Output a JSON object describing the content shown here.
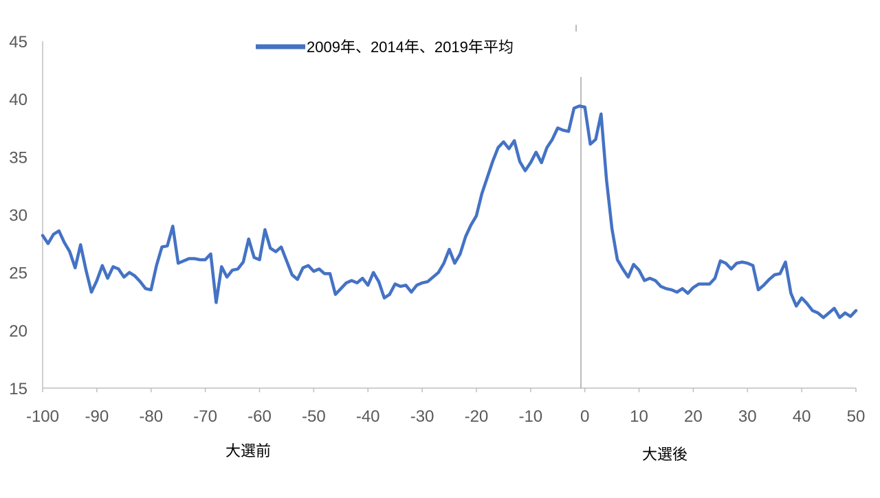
{
  "chart_data": {
    "type": "line",
    "title": "",
    "xlabel": "",
    "ylabel": "",
    "xlim": [
      -100,
      50
    ],
    "ylim": [
      15,
      45
    ],
    "x_ticks": [
      "-100",
      "-90",
      "-80",
      "-70",
      "-60",
      "-50",
      "-40",
      "-30",
      "-20",
      "-10",
      "0",
      "10",
      "20",
      "30",
      "40",
      "50"
    ],
    "y_ticks": [
      "15",
      "20",
      "25",
      "30",
      "35",
      "40",
      "45"
    ],
    "legend": "top-center",
    "grid": false,
    "annotations": {
      "before": "大選前",
      "after": "大選後"
    },
    "series": [
      {
        "name": "2009年、2014年、2019年平均",
        "color": "#4472C4",
        "x": [
          -100,
          -99,
          -98,
          -97,
          -96,
          -95,
          -94,
          -93,
          -92,
          -91,
          -90,
          -89,
          -88,
          -87,
          -86,
          -85,
          -84,
          -83,
          -82,
          -81,
          -80,
          -79,
          -78,
          -77,
          -76,
          -75,
          -74,
          -73,
          -72,
          -71,
          -70,
          -69,
          -68,
          -67,
          -66,
          -65,
          -64,
          -63,
          -62,
          -61,
          -60,
          -59,
          -58,
          -57,
          -56,
          -55,
          -54,
          -53,
          -52,
          -51,
          -50,
          -49,
          -48,
          -47,
          -46,
          -45,
          -44,
          -43,
          -42,
          -41,
          -40,
          -39,
          -38,
          -37,
          -36,
          -35,
          -34,
          -33,
          -32,
          -31,
          -30,
          -29,
          -28,
          -27,
          -26,
          -25,
          -24,
          -23,
          -22,
          -21,
          -20,
          -19,
          -18,
          -17,
          -16,
          -15,
          -14,
          -13,
          -12,
          -11,
          -10,
          -9,
          -8,
          -7,
          -6,
          -5,
          -4,
          -3,
          -2,
          -1,
          0,
          1,
          2,
          3,
          4,
          5,
          6,
          7,
          8,
          9,
          10,
          11,
          12,
          13,
          14,
          15,
          16,
          17,
          18,
          19,
          20,
          21,
          22,
          23,
          24,
          25,
          26,
          27,
          28,
          29,
          30,
          31,
          32,
          33,
          34,
          35,
          36,
          37,
          38,
          39,
          40,
          41,
          42,
          43,
          44,
          45,
          46,
          47,
          48,
          49,
          50
        ],
        "values": [
          28.2,
          27.5,
          28.3,
          28.6,
          27.6,
          26.8,
          25.4,
          27.4,
          25.2,
          23.3,
          24.3,
          25.6,
          24.5,
          25.5,
          25.3,
          24.6,
          25.0,
          24.7,
          24.2,
          23.6,
          23.5,
          25.6,
          27.2,
          27.3,
          29.0,
          25.8,
          26.0,
          26.2,
          26.2,
          26.1,
          26.1,
          26.6,
          22.4,
          25.5,
          24.6,
          25.2,
          25.3,
          25.9,
          27.9,
          26.3,
          26.1,
          28.7,
          27.1,
          26.8,
          27.2,
          26.0,
          24.8,
          24.4,
          25.4,
          25.6,
          25.1,
          25.3,
          24.9,
          24.9,
          23.1,
          23.6,
          24.1,
          24.3,
          24.1,
          24.5,
          23.9,
          25.0,
          24.2,
          22.8,
          23.1,
          24.0,
          23.8,
          23.9,
          23.3,
          23.9,
          24.1,
          24.2,
          24.6,
          25.0,
          25.8,
          27.0,
          25.8,
          26.6,
          28.1,
          29.1,
          29.9,
          31.8,
          33.2,
          34.6,
          35.8,
          36.3,
          35.7,
          36.4,
          34.6,
          33.8,
          34.5,
          35.4,
          34.5,
          35.8,
          36.5,
          37.5,
          37.3,
          37.2,
          39.2,
          39.4,
          39.3,
          36.1,
          36.5,
          38.7,
          33.0,
          28.8,
          26.1,
          25.3,
          24.6,
          25.7,
          25.2,
          24.3,
          24.5,
          24.3,
          23.8,
          23.6,
          23.5,
          23.3,
          23.6,
          23.2,
          23.7,
          24.0,
          24.0,
          24.0,
          24.5,
          26.0,
          25.8,
          25.3,
          25.8,
          25.9,
          25.8,
          25.6,
          23.5,
          23.9,
          24.4,
          24.8,
          24.9,
          25.9,
          23.2,
          22.1,
          22.8,
          22.3,
          21.7,
          21.5,
          21.1,
          21.5,
          21.9,
          21.1,
          21.5,
          21.2,
          21.7
        ]
      }
    ]
  }
}
